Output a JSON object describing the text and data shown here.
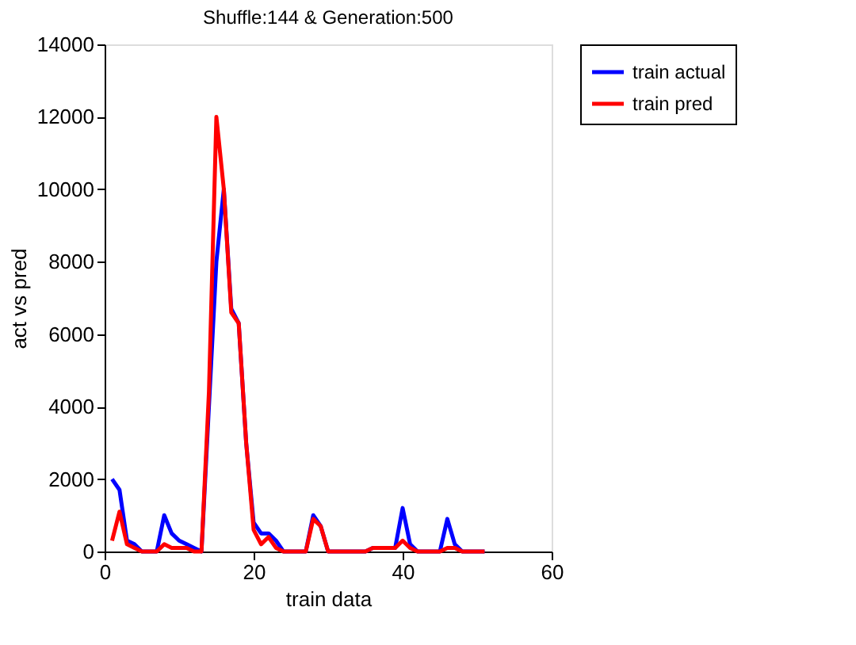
{
  "chart_data": {
    "type": "line",
    "title": "Shuffle:144 & Generation:500",
    "xlabel": "train data",
    "ylabel": "act vs pred",
    "x": [
      1,
      2,
      3,
      4,
      5,
      6,
      7,
      8,
      9,
      10,
      11,
      12,
      13,
      14,
      15,
      16,
      17,
      18,
      19,
      20,
      21,
      22,
      23,
      24,
      25,
      26,
      27,
      28,
      29,
      30,
      31,
      32,
      33,
      34,
      35,
      36,
      37,
      38,
      39,
      40,
      41,
      42,
      43,
      44,
      45,
      46,
      47,
      48,
      49,
      50,
      51
    ],
    "series": [
      {
        "name": "train actual",
        "color": "#0000ff",
        "values": [
          2000,
          1700,
          300,
          200,
          0,
          0,
          0,
          1000,
          500,
          300,
          200,
          100,
          0,
          4000,
          8000,
          10000,
          6700,
          6300,
          3000,
          800,
          500,
          500,
          300,
          0,
          0,
          0,
          0,
          1000,
          700,
          0,
          0,
          0,
          0,
          0,
          0,
          100,
          100,
          100,
          100,
          1200,
          200,
          0,
          0,
          0,
          0,
          900,
          200,
          0,
          0,
          0,
          0
        ]
      },
      {
        "name": "train pred",
        "color": "#ff0000",
        "values": [
          300,
          1100,
          200,
          100,
          0,
          0,
          0,
          200,
          100,
          100,
          100,
          0,
          0,
          4400,
          12000,
          10000,
          6600,
          6300,
          3000,
          600,
          200,
          400,
          100,
          0,
          0,
          0,
          0,
          900,
          700,
          0,
          0,
          0,
          0,
          0,
          0,
          100,
          100,
          100,
          100,
          300,
          100,
          0,
          0,
          0,
          0,
          100,
          100,
          0,
          0,
          0,
          0
        ]
      }
    ],
    "xlim": [
      0,
      60
    ],
    "xticks": [
      0,
      20,
      40,
      60
    ],
    "ylim": [
      0,
      14000
    ],
    "yticks": [
      0,
      2000,
      4000,
      6000,
      8000,
      10000,
      12000,
      14000
    ],
    "grid": false,
    "legend": "top right",
    "marker": "none",
    "line_style": "solid"
  }
}
